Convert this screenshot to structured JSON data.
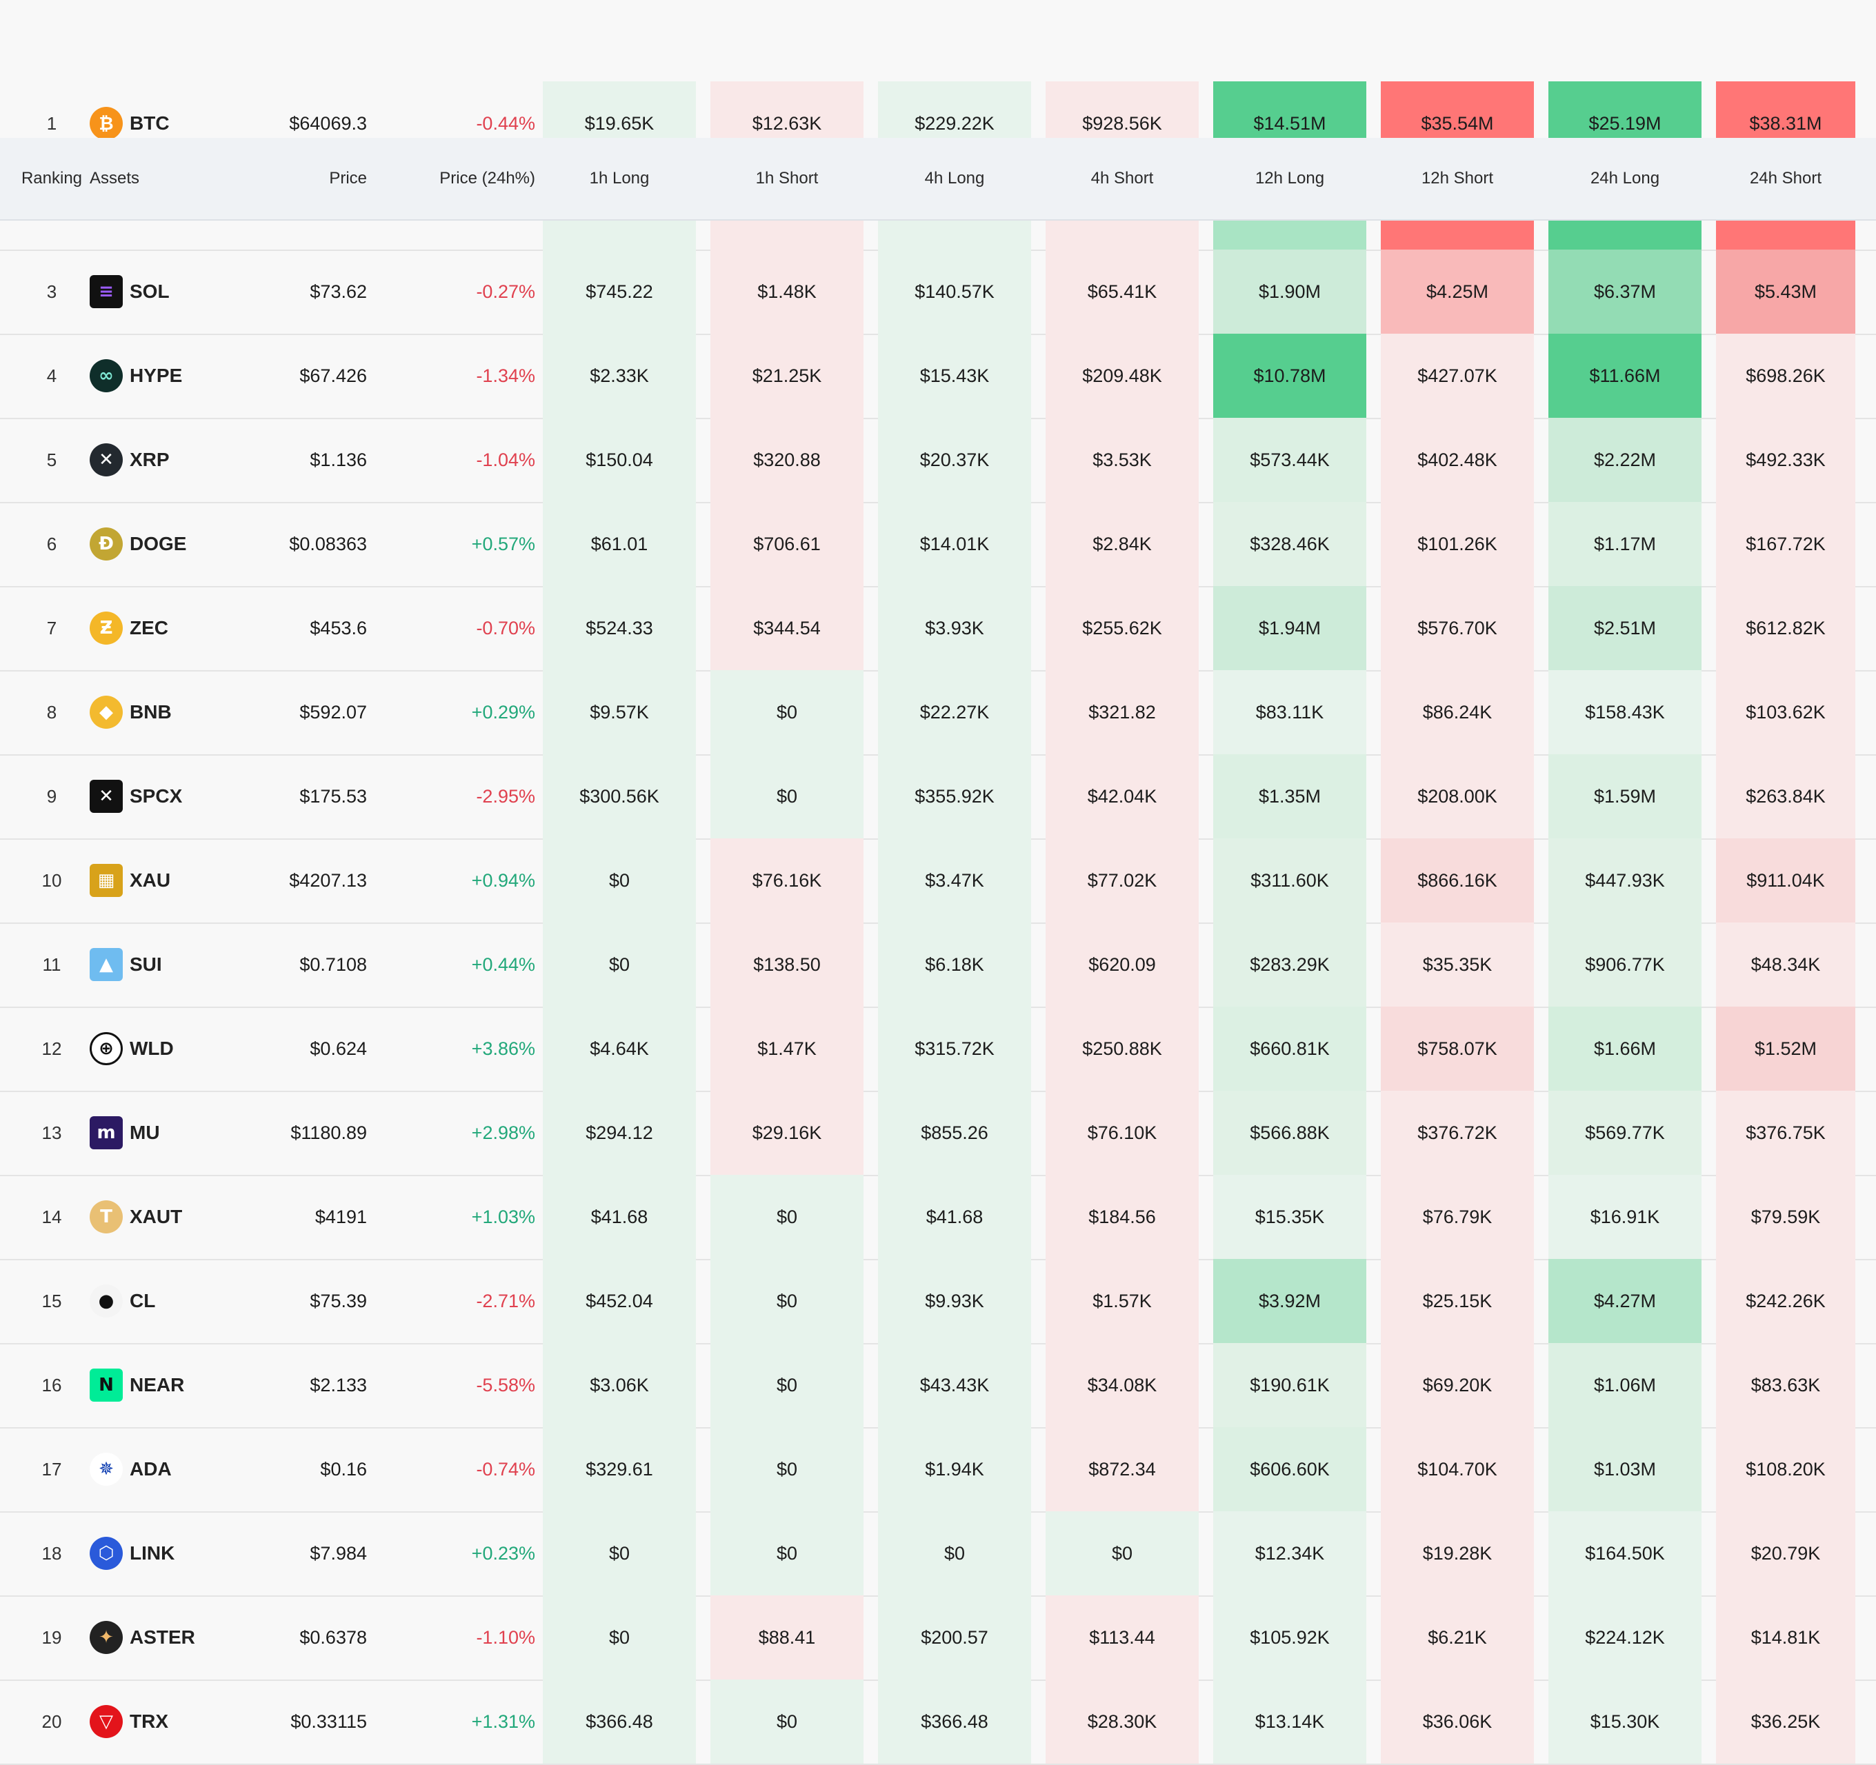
{
  "header": {
    "ranking": "Ranking",
    "assets": "Assets",
    "price": "Price",
    "change": "Price (24h%)",
    "h1_long": "1h Long",
    "h1_short": "1h Short",
    "h4_long": "4h Long",
    "h4_short": "4h Short",
    "h12_long": "12h Long",
    "h12_short": "12h Short",
    "h24_long": "24h Long",
    "h24_short": "24h Short"
  },
  "colors": {
    "long_base": "#e7f3ec",
    "short_base": "#f9e8e8",
    "long_strong": "#56ce8f",
    "short_strong": "#ff7676",
    "positive_text": "#22a87a",
    "negative_text": "#e0414f"
  },
  "rows": [
    {
      "rank": "1",
      "symbol": "BTC",
      "icon": "bitcoin-icon",
      "price": "$64069.3",
      "change": "-0.44%",
      "dir": "neg",
      "values": [
        "$19.65K",
        "$12.63K",
        "$229.22K",
        "$928.56K",
        "$14.51M",
        "$35.54M",
        "$25.19M",
        "$38.31M"
      ],
      "bg": [
        "#e7f3ec",
        "#f9e8e8",
        "#e7f3ec",
        "#f9e8e8",
        "#56ce8f",
        "#ff7676",
        "#56ce8f",
        "#ff7676"
      ]
    },
    {
      "rank": "",
      "symbol": "",
      "icon": "",
      "price": "",
      "change": "",
      "dir": "neg",
      "values": [
        "",
        "",
        "",
        "",
        "",
        "",
        "",
        ""
      ],
      "bg": [
        "#e7f3ec",
        "#f9e8e8",
        "#e7f3ec",
        "#f9e8e8",
        "#a9e4c4",
        "#ff7676",
        "#56ce8f",
        "#ff7676"
      ]
    },
    {
      "rank": "3",
      "symbol": "SOL",
      "icon": "solana-icon",
      "price": "$73.62",
      "change": "-0.27%",
      "dir": "neg",
      "values": [
        "$745.22",
        "$1.48K",
        "$140.57K",
        "$65.41K",
        "$1.90M",
        "$4.25M",
        "$6.37M",
        "$5.43M"
      ],
      "bg": [
        "#e7f3ec",
        "#f9e8e8",
        "#e7f3ec",
        "#f9e8e8",
        "#cdebd9",
        "#f9baba",
        "#93dcb4",
        "#f7a7a7"
      ]
    },
    {
      "rank": "4",
      "symbol": "HYPE",
      "icon": "hyperliquid-icon",
      "price": "$67.426",
      "change": "-1.34%",
      "dir": "neg",
      "values": [
        "$2.33K",
        "$21.25K",
        "$15.43K",
        "$209.48K",
        "$10.78M",
        "$427.07K",
        "$11.66M",
        "$698.26K"
      ],
      "bg": [
        "#e7f3ec",
        "#f9e8e8",
        "#e7f3ec",
        "#f9e8e8",
        "#56ce8f",
        "#f9e8e8",
        "#56ce8f",
        "#f9e8e8"
      ]
    },
    {
      "rank": "5",
      "symbol": "XRP",
      "icon": "xrp-icon",
      "price": "$1.136",
      "change": "-1.04%",
      "dir": "neg",
      "values": [
        "$150.04",
        "$320.88",
        "$20.37K",
        "$3.53K",
        "$573.44K",
        "$402.48K",
        "$2.22M",
        "$492.33K"
      ],
      "bg": [
        "#e7f3ec",
        "#f9e8e8",
        "#e7f3ec",
        "#f9e8e8",
        "#dcf0e3",
        "#f9e8e8",
        "#cdebd9",
        "#f9e8e8"
      ]
    },
    {
      "rank": "6",
      "symbol": "DOGE",
      "icon": "dogecoin-icon",
      "price": "$0.08363",
      "change": "+0.57%",
      "dir": "pos",
      "values": [
        "$61.01",
        "$706.61",
        "$14.01K",
        "$2.84K",
        "$328.46K",
        "$101.26K",
        "$1.17M",
        "$167.72K"
      ],
      "bg": [
        "#e7f3ec",
        "#f9e8e8",
        "#e7f3ec",
        "#f9e8e8",
        "#e1f1e6",
        "#f9e8e8",
        "#dcf0e3",
        "#f9e8e8"
      ]
    },
    {
      "rank": "7",
      "symbol": "ZEC",
      "icon": "zcash-icon",
      "price": "$453.6",
      "change": "-0.70%",
      "dir": "neg",
      "values": [
        "$524.33",
        "$344.54",
        "$3.93K",
        "$255.62K",
        "$1.94M",
        "$576.70K",
        "$2.51M",
        "$612.82K"
      ],
      "bg": [
        "#e7f3ec",
        "#f9e8e8",
        "#e7f3ec",
        "#f9e8e8",
        "#cdebd9",
        "#f9e8e8",
        "#cdebd9",
        "#f9e8e8"
      ]
    },
    {
      "rank": "8",
      "symbol": "BNB",
      "icon": "bnb-icon",
      "price": "$592.07",
      "change": "+0.29%",
      "dir": "pos",
      "values": [
        "$9.57K",
        "$0",
        "$22.27K",
        "$321.82",
        "$83.11K",
        "$86.24K",
        "$158.43K",
        "$103.62K"
      ],
      "bg": [
        "#e7f3ec",
        "#e7f3ec",
        "#e7f3ec",
        "#f9e8e8",
        "#e7f3ec",
        "#f9e8e8",
        "#e7f3ec",
        "#f9e8e8"
      ]
    },
    {
      "rank": "9",
      "symbol": "SPCX",
      "icon": "spacex-icon",
      "price": "$175.53",
      "change": "-2.95%",
      "dir": "neg",
      "values": [
        "$300.56K",
        "$0",
        "$355.92K",
        "$42.04K",
        "$1.35M",
        "$208.00K",
        "$1.59M",
        "$263.84K"
      ],
      "bg": [
        "#e7f3ec",
        "#e7f3ec",
        "#e7f3ec",
        "#f9e8e8",
        "#dcf0e3",
        "#f9e8e8",
        "#dcf0e3",
        "#f9e8e8"
      ]
    },
    {
      "rank": "10",
      "symbol": "XAU",
      "icon": "gold-bars-icon",
      "price": "$4207.13",
      "change": "+0.94%",
      "dir": "pos",
      "values": [
        "$0",
        "$76.16K",
        "$3.47K",
        "$77.02K",
        "$311.60K",
        "$866.16K",
        "$447.93K",
        "$911.04K"
      ],
      "bg": [
        "#e7f3ec",
        "#f9e8e8",
        "#e7f3ec",
        "#f9e8e8",
        "#e1f1e6",
        "#f8dcdc",
        "#e1f1e6",
        "#f8dcdc"
      ]
    },
    {
      "rank": "11",
      "symbol": "SUI",
      "icon": "sui-drop-icon",
      "price": "$0.7108",
      "change": "+0.44%",
      "dir": "pos",
      "values": [
        "$0",
        "$138.50",
        "$6.18K",
        "$620.09",
        "$283.29K",
        "$35.35K",
        "$906.77K",
        "$48.34K"
      ],
      "bg": [
        "#e7f3ec",
        "#f9e8e8",
        "#e7f3ec",
        "#f9e8e8",
        "#e1f1e6",
        "#f9e8e8",
        "#e1f1e6",
        "#f9e8e8"
      ]
    },
    {
      "rank": "12",
      "symbol": "WLD",
      "icon": "worldcoin-icon",
      "price": "$0.624",
      "change": "+3.86%",
      "dir": "pos",
      "values": [
        "$4.64K",
        "$1.47K",
        "$315.72K",
        "$250.88K",
        "$660.81K",
        "$758.07K",
        "$1.66M",
        "$1.52M"
      ],
      "bg": [
        "#e7f3ec",
        "#f9e8e8",
        "#e7f3ec",
        "#f9e8e8",
        "#dcf0e3",
        "#f8dcdc",
        "#d4eedd",
        "#f7d4d4"
      ]
    },
    {
      "rank": "13",
      "symbol": "MU",
      "icon": "micron-icon",
      "price": "$1180.89",
      "change": "+2.98%",
      "dir": "pos",
      "values": [
        "$294.12",
        "$29.16K",
        "$855.26",
        "$76.10K",
        "$566.88K",
        "$376.72K",
        "$569.77K",
        "$376.75K"
      ],
      "bg": [
        "#e7f3ec",
        "#f9e8e8",
        "#e7f3ec",
        "#f9e8e8",
        "#e1f1e6",
        "#f9e8e8",
        "#e1f1e6",
        "#f9e8e8"
      ]
    },
    {
      "rank": "14",
      "symbol": "XAUT",
      "icon": "tether-gold-icon",
      "price": "$4191",
      "change": "+1.03%",
      "dir": "pos",
      "values": [
        "$41.68",
        "$0",
        "$41.68",
        "$184.56",
        "$15.35K",
        "$76.79K",
        "$16.91K",
        "$79.59K"
      ],
      "bg": [
        "#e7f3ec",
        "#e7f3ec",
        "#e7f3ec",
        "#f9e8e8",
        "#e7f3ec",
        "#f9e8e8",
        "#e7f3ec",
        "#f9e8e8"
      ]
    },
    {
      "rank": "15",
      "symbol": "CL",
      "icon": "oil-drop-icon",
      "price": "$75.39",
      "change": "-2.71%",
      "dir": "neg",
      "values": [
        "$452.04",
        "$0",
        "$9.93K",
        "$1.57K",
        "$3.92M",
        "$25.15K",
        "$4.27M",
        "$242.26K"
      ],
      "bg": [
        "#e7f3ec",
        "#e7f3ec",
        "#e7f3ec",
        "#f9e8e8",
        "#b5e6cb",
        "#f9e8e8",
        "#b5e6cb",
        "#f9e8e8"
      ]
    },
    {
      "rank": "16",
      "symbol": "NEAR",
      "icon": "near-icon",
      "price": "$2.133",
      "change": "-5.58%",
      "dir": "neg",
      "values": [
        "$3.06K",
        "$0",
        "$43.43K",
        "$34.08K",
        "$190.61K",
        "$69.20K",
        "$1.06M",
        "$83.63K"
      ],
      "bg": [
        "#e7f3ec",
        "#e7f3ec",
        "#e7f3ec",
        "#f9e8e8",
        "#e1f1e6",
        "#f9e8e8",
        "#dcf0e3",
        "#f9e8e8"
      ]
    },
    {
      "rank": "17",
      "symbol": "ADA",
      "icon": "cardano-icon",
      "price": "$0.16",
      "change": "-0.74%",
      "dir": "neg",
      "values": [
        "$329.61",
        "$0",
        "$1.94K",
        "$872.34",
        "$606.60K",
        "$104.70K",
        "$1.03M",
        "$108.20K"
      ],
      "bg": [
        "#e7f3ec",
        "#e7f3ec",
        "#e7f3ec",
        "#f9e8e8",
        "#dcf0e3",
        "#f9e8e8",
        "#dcf0e3",
        "#f9e8e8"
      ]
    },
    {
      "rank": "18",
      "symbol": "LINK",
      "icon": "chainlink-icon",
      "price": "$7.984",
      "change": "+0.23%",
      "dir": "pos",
      "values": [
        "$0",
        "$0",
        "$0",
        "$0",
        "$12.34K",
        "$19.28K",
        "$164.50K",
        "$20.79K"
      ],
      "bg": [
        "#e7f3ec",
        "#e7f3ec",
        "#e7f3ec",
        "#e7f3ec",
        "#e7f3ec",
        "#f9e8e8",
        "#e7f3ec",
        "#f9e8e8"
      ]
    },
    {
      "rank": "19",
      "symbol": "ASTER",
      "icon": "aster-icon",
      "price": "$0.6378",
      "change": "-1.10%",
      "dir": "neg",
      "values": [
        "$0",
        "$88.41",
        "$200.57",
        "$113.44",
        "$105.92K",
        "$6.21K",
        "$224.12K",
        "$14.81K"
      ],
      "bg": [
        "#e7f3ec",
        "#f9e8e8",
        "#e7f3ec",
        "#f9e8e8",
        "#e7f3ec",
        "#f9e8e8",
        "#e7f3ec",
        "#f9e8e8"
      ]
    },
    {
      "rank": "20",
      "symbol": "TRX",
      "icon": "tron-icon",
      "price": "$0.33115",
      "change": "+1.31%",
      "dir": "pos",
      "values": [
        "$366.48",
        "$0",
        "$366.48",
        "$28.30K",
        "$13.14K",
        "$36.06K",
        "$15.30K",
        "$36.25K"
      ],
      "bg": [
        "#e7f3ec",
        "#e7f3ec",
        "#e7f3ec",
        "#f9e8e8",
        "#e7f3ec",
        "#f9e8e8",
        "#e7f3ec",
        "#f9e8e8"
      ]
    }
  ]
}
